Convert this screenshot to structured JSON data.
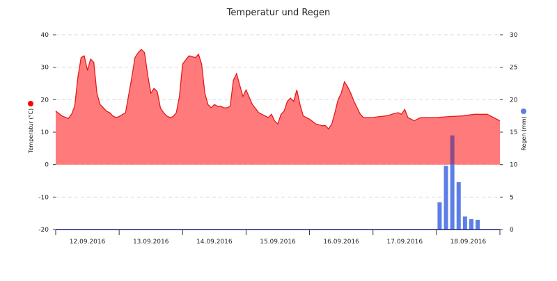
{
  "chart_data": {
    "type": "area",
    "title": "Temperatur und Regen",
    "y_left": {
      "label": "Temperatur (°C)",
      "min": -20,
      "max": 40,
      "ticks": [
        -20,
        -10,
        0,
        10,
        20,
        30,
        40
      ]
    },
    "y_right": {
      "label": "Regen (mm)",
      "min": 0,
      "max": 30,
      "ticks": [
        0,
        5,
        10,
        15,
        20,
        25,
        30
      ]
    },
    "x_range_days": [
      0,
      7
    ],
    "x_tick_labels": [
      "12.09.2016",
      "13.09.2016",
      "14.09.2016",
      "15.09.2016",
      "16.09.2016",
      "17.09.2016",
      "18.09.2016"
    ],
    "colors": {
      "temperature_line": "#e31a1c",
      "temperature_fill": "#ff7b7b",
      "rain_bar": "#5b7fe6",
      "rain_bar_overlap": "#8b4c8c",
      "left_marker": "#ff0000",
      "right_marker": "#5b7fe6"
    },
    "series": [
      {
        "axis": "left",
        "type": "area",
        "x_days": [
          0.0,
          0.1,
          0.2,
          0.25,
          0.3,
          0.35,
          0.4,
          0.45,
          0.5,
          0.55,
          0.6,
          0.65,
          0.7,
          0.75,
          0.8,
          0.85,
          0.9,
          0.95,
          1.0,
          1.1,
          1.2,
          1.25,
          1.3,
          1.35,
          1.4,
          1.45,
          1.5,
          1.55,
          1.6,
          1.65,
          1.7,
          1.75,
          1.8,
          1.85,
          1.9,
          1.95,
          2.0,
          2.1,
          2.2,
          2.25,
          2.3,
          2.35,
          2.4,
          2.45,
          2.5,
          2.55,
          2.6,
          2.65,
          2.7,
          2.75,
          2.8,
          2.85,
          2.9,
          2.95,
          3.0,
          3.1,
          3.2,
          3.25,
          3.3,
          3.35,
          3.4,
          3.45,
          3.5,
          3.55,
          3.6,
          3.65,
          3.7,
          3.75,
          3.8,
          3.85,
          3.9,
          3.95,
          4.0,
          4.1,
          4.2,
          4.25,
          4.3,
          4.35,
          4.4,
          4.45,
          4.5,
          4.55,
          4.6,
          4.65,
          4.7,
          4.75,
          4.8,
          4.85,
          4.9,
          4.95,
          5.0,
          5.1,
          5.2,
          5.25,
          5.3,
          5.35,
          5.4,
          5.45,
          5.5,
          5.55,
          5.6,
          5.65,
          5.7,
          5.75,
          5.8,
          5.85,
          5.9,
          5.95,
          6.0,
          6.2,
          6.4,
          6.6,
          6.8,
          6.9,
          7.0
        ],
        "values": [
          16.5,
          15.0,
          14.2,
          15.5,
          18.0,
          27.0,
          33.0,
          33.5,
          29.0,
          32.5,
          31.5,
          22.0,
          18.5,
          17.5,
          16.5,
          16.0,
          15.0,
          14.5,
          14.8,
          16.0,
          27.0,
          33.0,
          34.5,
          35.5,
          34.5,
          27.5,
          22.0,
          23.5,
          22.5,
          17.5,
          16.0,
          15.0,
          14.5,
          14.8,
          16.0,
          21.0,
          31.0,
          33.5,
          33.0,
          34.0,
          31.0,
          22.0,
          18.5,
          17.5,
          18.5,
          18.0,
          18.0,
          17.5,
          17.5,
          18.0,
          26.0,
          28.0,
          24.5,
          21.0,
          23.0,
          18.5,
          16.0,
          15.5,
          15.0,
          14.5,
          15.5,
          13.5,
          12.5,
          15.5,
          16.5,
          19.5,
          20.5,
          19.5,
          23.0,
          18.5,
          15.0,
          14.5,
          14.0,
          12.5,
          12.0,
          12.0,
          11.0,
          12.5,
          16.0,
          20.0,
          22.0,
          25.5,
          24.0,
          22.0,
          19.5,
          17.5,
          15.5,
          14.5,
          14.5,
          14.5,
          14.5,
          14.8,
          15.0,
          15.2,
          15.5,
          15.8,
          16.0,
          15.5,
          17.0,
          14.5,
          14.0,
          13.5,
          14.0,
          14.5,
          14.5,
          14.5,
          14.5,
          14.5,
          14.5,
          14.8,
          15.0,
          15.5,
          15.5,
          14.5,
          13.5
        ]
      },
      {
        "axis": "right",
        "type": "bar",
        "x_days": [
          6.05,
          6.15,
          6.25,
          6.35,
          6.45,
          6.55,
          6.65
        ],
        "values": [
          4.2,
          9.8,
          14.5,
          7.3,
          2.0,
          1.6,
          1.5
        ]
      }
    ]
  }
}
